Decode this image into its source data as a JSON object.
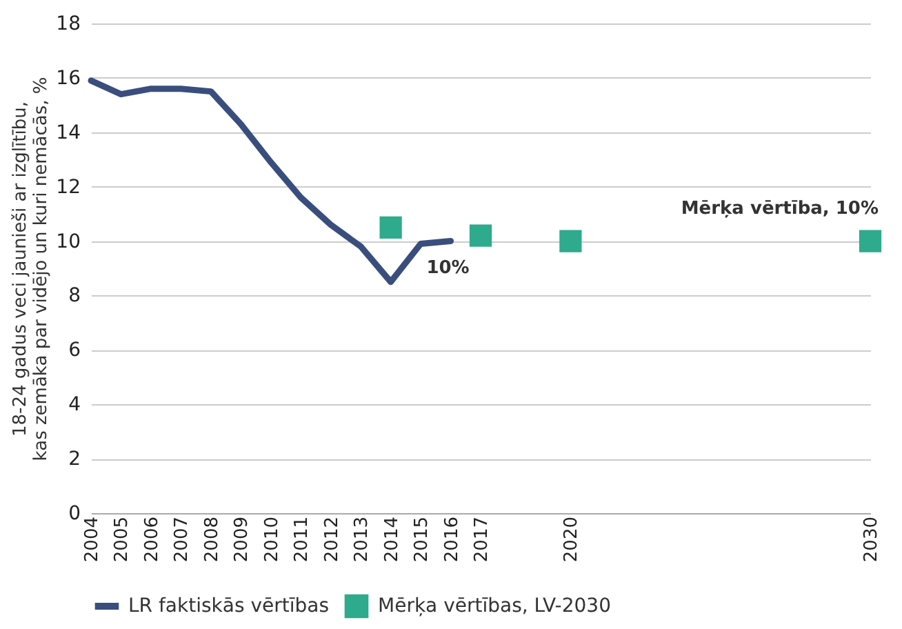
{
  "chart_data": {
    "type": "line",
    "ylabel": "18-24 gadus veci jaunieši ar izglītību,\nkas zemāka par vidējo un kuri nemācās, %",
    "xlim": [
      2004,
      2030
    ],
    "xticks": [
      2004,
      2005,
      2006,
      2007,
      2008,
      2009,
      2010,
      2011,
      2012,
      2013,
      2014,
      2015,
      2016,
      2017,
      2020,
      2030
    ],
    "ylim": [
      0,
      18
    ],
    "yticks": [
      0,
      2,
      4,
      6,
      8,
      10,
      12,
      14,
      16,
      18
    ],
    "grid": "y",
    "legend": "bottom",
    "series": [
      {
        "name": "LR faktiskās vērtības",
        "color": "#3a4e7e",
        "x": [
          2004,
          2005,
          2006,
          2007,
          2008,
          2009,
          2010,
          2011,
          2012,
          2013,
          2014,
          2015,
          2016
        ],
        "values": [
          15.9,
          15.4,
          15.6,
          15.6,
          15.5,
          14.3,
          12.9,
          11.6,
          10.6,
          9.8,
          8.5,
          9.9,
          10.0
        ]
      },
      {
        "name": "Mērķa vērtības, LV-2030",
        "type": "scatter",
        "marker": "square",
        "color": "#2eaa8c",
        "x": [
          2014,
          2017,
          2020,
          2030
        ],
        "values": [
          10.5,
          10.2,
          10.0,
          10.0
        ]
      }
    ],
    "annotations": [
      {
        "text": "10%",
        "x": 2016,
        "y": 10
      },
      {
        "text": "Mērķa vērtība, 10%",
        "x": 2030,
        "y": 10
      }
    ]
  }
}
